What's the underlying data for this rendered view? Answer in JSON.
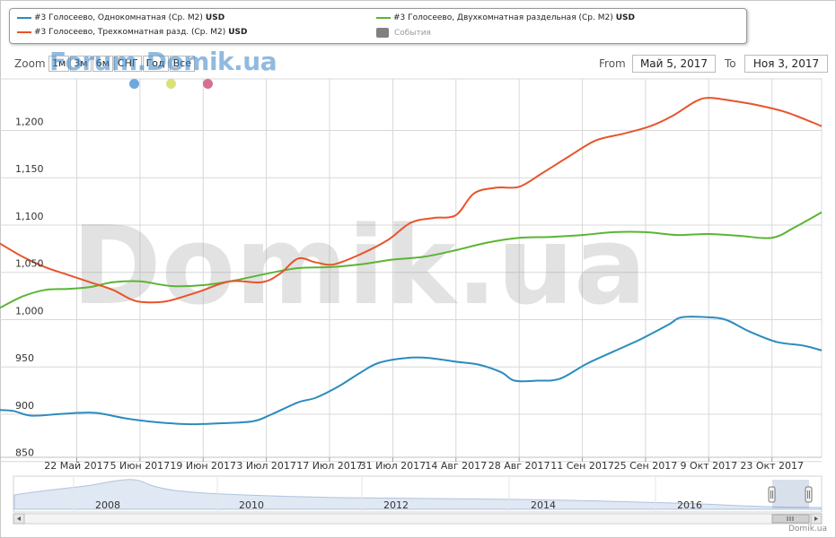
{
  "legend": {
    "items": [
      {
        "label": "#3 Голосеево, Однокомнатная (Ср. М2)",
        "unit": "USD",
        "color": "#2b8cbe"
      },
      {
        "label": "#3 Голосеево, Двухкомнатная раздельная (Ср. М2)",
        "unit": "USD",
        "color": "#5ab534"
      },
      {
        "label": "#3 Голосеево, Трехкомнатная разд. (Ср. М2)",
        "unit": "USD",
        "color": "#e8542a"
      },
      {
        "label": "События",
        "unit": "",
        "color": "#808080"
      }
    ]
  },
  "zoom": {
    "label": "Zoom",
    "buttons": [
      "1м",
      "3м",
      "6м",
      "СНГ",
      "Год",
      "Все"
    ]
  },
  "watermark": {
    "forum": "Forum.Domik.ua",
    "main": "Domik.ua"
  },
  "dots": [
    "#6fa8dc",
    "#d9e27a",
    "#d27095"
  ],
  "range": {
    "from_label": "From",
    "from_value": "Май 5, 2017",
    "to_label": "To",
    "to_value": "Ноя 3, 2017"
  },
  "credit": "Domik.ua",
  "chart_data": {
    "type": "line",
    "title": "",
    "xlabel": "",
    "ylabel": "",
    "ylim": [
      845,
      1245
    ],
    "yticks": [
      850,
      900,
      950,
      1000,
      1050,
      1100,
      1150,
      1200
    ],
    "ytick_labels": [
      "850",
      "900",
      "950",
      "1,000",
      "1,050",
      "1,100",
      "1,150",
      "1,200"
    ],
    "xlim": [
      "2017-05-05",
      "2017-11-03"
    ],
    "xticks": [
      "2017-05-22",
      "2017-06-05",
      "2017-06-19",
      "2017-07-03",
      "2017-07-17",
      "2017-07-31",
      "2017-08-14",
      "2017-08-28",
      "2017-09-11",
      "2017-09-25",
      "2017-10-09",
      "2017-10-23"
    ],
    "xtick_labels": [
      "22 Май 2017",
      "5 Июн 2017",
      "19 Июн 2017",
      "3 Июл 2017",
      "17 Июл 2017",
      "31 Июл 2017",
      "14 Авг 2017",
      "28 Авг 2017",
      "11 Сен 2017",
      "25 Сен 2017",
      "9 Окт 2017",
      "23 Окт 2017"
    ],
    "grid": true,
    "legend_position": "top",
    "series": [
      {
        "name": "#3 Голосеево, Однокомнатная (Ср. М2)",
        "color": "#2b8cbe",
        "x": [
          "2017-05-05",
          "2017-05-08",
          "2017-05-12",
          "2017-05-19",
          "2017-05-26",
          "2017-06-02",
          "2017-06-09",
          "2017-06-16",
          "2017-06-23",
          "2017-06-30",
          "2017-07-04",
          "2017-07-10",
          "2017-07-14",
          "2017-07-19",
          "2017-07-24",
          "2017-07-28",
          "2017-08-03",
          "2017-08-08",
          "2017-08-14",
          "2017-08-19",
          "2017-08-24",
          "2017-08-27",
          "2017-09-01",
          "2017-09-06",
          "2017-09-12",
          "2017-09-18",
          "2017-09-24",
          "2017-09-30",
          "2017-10-03",
          "2017-10-09",
          "2017-10-13",
          "2017-10-18",
          "2017-10-24",
          "2017-10-30",
          "2017-11-03"
        ],
        "values": [
          895,
          894,
          889,
          891,
          892,
          886,
          882,
          880,
          881,
          883,
          890,
          903,
          908,
          920,
          935,
          945,
          950,
          950,
          946,
          943,
          935,
          926,
          926,
          928,
          944,
          957,
          970,
          985,
          993,
          993,
          990,
          978,
          967,
          963,
          958
        ]
      },
      {
        "name": "#3 Голосеево, Двухкомнатная раздельная (Ср. М2)",
        "color": "#5ab534",
        "x": [
          "2017-05-05",
          "2017-05-10",
          "2017-05-15",
          "2017-05-20",
          "2017-05-25",
          "2017-05-30",
          "2017-06-05",
          "2017-06-12",
          "2017-06-19",
          "2017-06-26",
          "2017-07-03",
          "2017-07-10",
          "2017-07-17",
          "2017-07-24",
          "2017-07-31",
          "2017-08-07",
          "2017-08-14",
          "2017-08-21",
          "2017-08-28",
          "2017-09-04",
          "2017-09-11",
          "2017-09-18",
          "2017-09-25",
          "2017-10-02",
          "2017-10-09",
          "2017-10-16",
          "2017-10-23",
          "2017-10-28",
          "2017-11-03"
        ],
        "values": [
          1003,
          1015,
          1022,
          1023,
          1025,
          1030,
          1031,
          1026,
          1027,
          1032,
          1039,
          1045,
          1046,
          1049,
          1054,
          1057,
          1064,
          1072,
          1077,
          1078,
          1080,
          1083,
          1083,
          1080,
          1081,
          1079,
          1077,
          1088,
          1104
        ]
      },
      {
        "name": "#3 Голосеево, Трехкомнатная разд. (Ср. М2)",
        "color": "#e8542a",
        "x": [
          "2017-05-05",
          "2017-05-10",
          "2017-05-15",
          "2017-05-20",
          "2017-05-25",
          "2017-05-30",
          "2017-06-03",
          "2017-06-06",
          "2017-06-11",
          "2017-06-18",
          "2017-06-25",
          "2017-07-02",
          "2017-07-06",
          "2017-07-10",
          "2017-07-14",
          "2017-07-18",
          "2017-07-24",
          "2017-07-30",
          "2017-08-04",
          "2017-08-09",
          "2017-08-14",
          "2017-08-18",
          "2017-08-23",
          "2017-08-28",
          "2017-09-02",
          "2017-09-08",
          "2017-09-14",
          "2017-09-20",
          "2017-09-26",
          "2017-10-01",
          "2017-10-06",
          "2017-10-09",
          "2017-10-14",
          "2017-10-20",
          "2017-10-26",
          "2017-11-01",
          "2017-11-03"
        ],
        "values": [
          1071,
          1057,
          1046,
          1038,
          1030,
          1022,
          1012,
          1009,
          1010,
          1020,
          1031,
          1030,
          1039,
          1055,
          1051,
          1049,
          1060,
          1075,
          1093,
          1098,
          1101,
          1124,
          1130,
          1131,
          1145,
          1163,
          1180,
          1187,
          1195,
          1206,
          1221,
          1225,
          1222,
          1217,
          1210,
          1199,
          1195
        ]
      }
    ]
  },
  "navigator": {
    "year_labels": [
      "2008",
      "2010",
      "2012",
      "2014",
      "2016"
    ]
  }
}
